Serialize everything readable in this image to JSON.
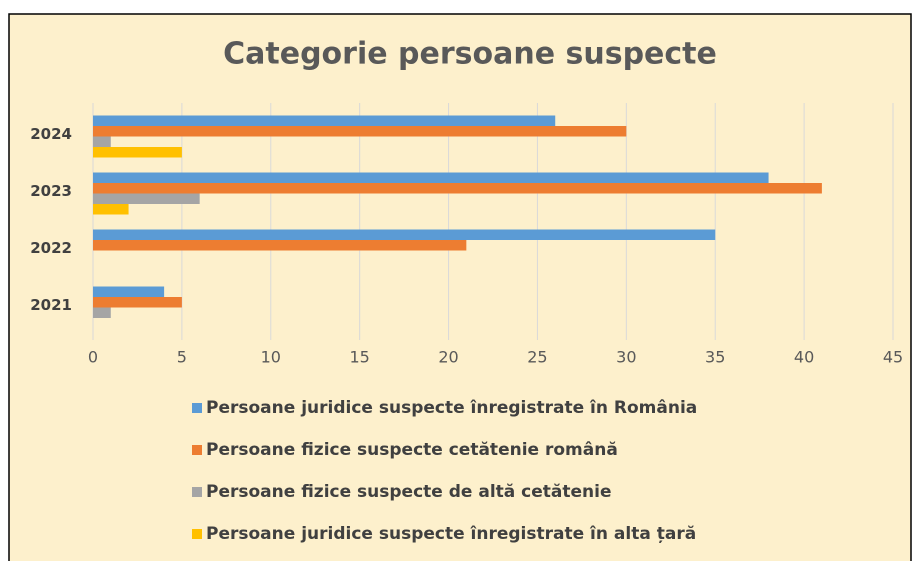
{
  "chart_data": {
    "type": "hbar",
    "title": "Categorie persoane suspecte",
    "categories": [
      "2024",
      "2023",
      "2022",
      "2021"
    ],
    "series": [
      {
        "name": "Persoane juridice suspecte înregistrate în România",
        "color": "#5b9bd5",
        "values": [
          26,
          38,
          35,
          4
        ]
      },
      {
        "name": "Persoane fizice suspecte cetătenie română",
        "color": "#ed7d31",
        "values": [
          30,
          41,
          21,
          5
        ]
      },
      {
        "name": "Persoane fizice suspecte de altă cetătenie",
        "color": "#a5a5a5",
        "values": [
          1,
          6,
          0,
          1
        ]
      },
      {
        "name": "Persoane juridice suspecte  înregistrate în alta țară",
        "color": "#ffc000",
        "values": [
          5,
          2,
          0,
          0
        ]
      }
    ],
    "xlim": [
      0,
      45
    ],
    "xticks": [
      0,
      5,
      10,
      15,
      20,
      25,
      30,
      35,
      40,
      45
    ],
    "grid": true,
    "legend": "bottom"
  }
}
